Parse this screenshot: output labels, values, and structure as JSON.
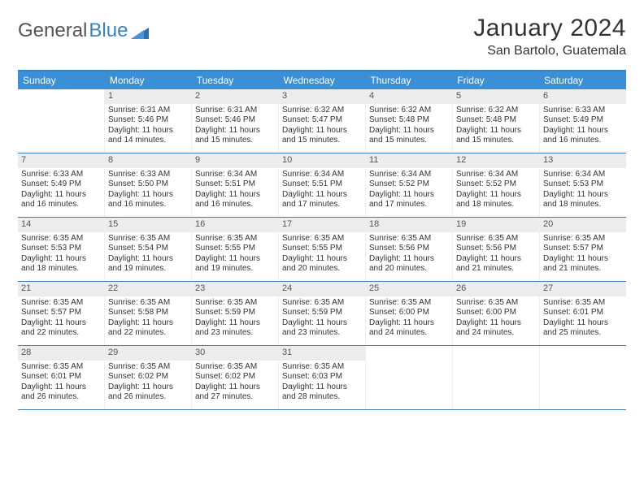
{
  "logo": {
    "part1": "General",
    "part2": "Blue"
  },
  "title": "January 2024",
  "location": "San Bartolo, Guatemala",
  "colors": {
    "header_bar": "#3b8fd4",
    "rule": "#3b7fb8",
    "daynum_bg": "#ececec",
    "text": "#333333",
    "logo_gray": "#555555",
    "logo_blue": "#3b82c4"
  },
  "typography": {
    "title_fontsize": 30,
    "location_fontsize": 16,
    "dow_fontsize": 12,
    "cell_fontsize": 10
  },
  "dow": [
    "Sunday",
    "Monday",
    "Tuesday",
    "Wednesday",
    "Thursday",
    "Friday",
    "Saturday"
  ],
  "weeks": [
    [
      {
        "n": "",
        "lines": [
          "",
          "",
          "",
          ""
        ]
      },
      {
        "n": "1",
        "lines": [
          "Sunrise: 6:31 AM",
          "Sunset: 5:46 PM",
          "Daylight: 11 hours",
          "and 14 minutes."
        ]
      },
      {
        "n": "2",
        "lines": [
          "Sunrise: 6:31 AM",
          "Sunset: 5:46 PM",
          "Daylight: 11 hours",
          "and 15 minutes."
        ]
      },
      {
        "n": "3",
        "lines": [
          "Sunrise: 6:32 AM",
          "Sunset: 5:47 PM",
          "Daylight: 11 hours",
          "and 15 minutes."
        ]
      },
      {
        "n": "4",
        "lines": [
          "Sunrise: 6:32 AM",
          "Sunset: 5:48 PM",
          "Daylight: 11 hours",
          "and 15 minutes."
        ]
      },
      {
        "n": "5",
        "lines": [
          "Sunrise: 6:32 AM",
          "Sunset: 5:48 PM",
          "Daylight: 11 hours",
          "and 15 minutes."
        ]
      },
      {
        "n": "6",
        "lines": [
          "Sunrise: 6:33 AM",
          "Sunset: 5:49 PM",
          "Daylight: 11 hours",
          "and 16 minutes."
        ]
      }
    ],
    [
      {
        "n": "7",
        "lines": [
          "Sunrise: 6:33 AM",
          "Sunset: 5:49 PM",
          "Daylight: 11 hours",
          "and 16 minutes."
        ]
      },
      {
        "n": "8",
        "lines": [
          "Sunrise: 6:33 AM",
          "Sunset: 5:50 PM",
          "Daylight: 11 hours",
          "and 16 minutes."
        ]
      },
      {
        "n": "9",
        "lines": [
          "Sunrise: 6:34 AM",
          "Sunset: 5:51 PM",
          "Daylight: 11 hours",
          "and 16 minutes."
        ]
      },
      {
        "n": "10",
        "lines": [
          "Sunrise: 6:34 AM",
          "Sunset: 5:51 PM",
          "Daylight: 11 hours",
          "and 17 minutes."
        ]
      },
      {
        "n": "11",
        "lines": [
          "Sunrise: 6:34 AM",
          "Sunset: 5:52 PM",
          "Daylight: 11 hours",
          "and 17 minutes."
        ]
      },
      {
        "n": "12",
        "lines": [
          "Sunrise: 6:34 AM",
          "Sunset: 5:52 PM",
          "Daylight: 11 hours",
          "and 18 minutes."
        ]
      },
      {
        "n": "13",
        "lines": [
          "Sunrise: 6:34 AM",
          "Sunset: 5:53 PM",
          "Daylight: 11 hours",
          "and 18 minutes."
        ]
      }
    ],
    [
      {
        "n": "14",
        "lines": [
          "Sunrise: 6:35 AM",
          "Sunset: 5:53 PM",
          "Daylight: 11 hours",
          "and 18 minutes."
        ]
      },
      {
        "n": "15",
        "lines": [
          "Sunrise: 6:35 AM",
          "Sunset: 5:54 PM",
          "Daylight: 11 hours",
          "and 19 minutes."
        ]
      },
      {
        "n": "16",
        "lines": [
          "Sunrise: 6:35 AM",
          "Sunset: 5:55 PM",
          "Daylight: 11 hours",
          "and 19 minutes."
        ]
      },
      {
        "n": "17",
        "lines": [
          "Sunrise: 6:35 AM",
          "Sunset: 5:55 PM",
          "Daylight: 11 hours",
          "and 20 minutes."
        ]
      },
      {
        "n": "18",
        "lines": [
          "Sunrise: 6:35 AM",
          "Sunset: 5:56 PM",
          "Daylight: 11 hours",
          "and 20 minutes."
        ]
      },
      {
        "n": "19",
        "lines": [
          "Sunrise: 6:35 AM",
          "Sunset: 5:56 PM",
          "Daylight: 11 hours",
          "and 21 minutes."
        ]
      },
      {
        "n": "20",
        "lines": [
          "Sunrise: 6:35 AM",
          "Sunset: 5:57 PM",
          "Daylight: 11 hours",
          "and 21 minutes."
        ]
      }
    ],
    [
      {
        "n": "21",
        "lines": [
          "Sunrise: 6:35 AM",
          "Sunset: 5:57 PM",
          "Daylight: 11 hours",
          "and 22 minutes."
        ]
      },
      {
        "n": "22",
        "lines": [
          "Sunrise: 6:35 AM",
          "Sunset: 5:58 PM",
          "Daylight: 11 hours",
          "and 22 minutes."
        ]
      },
      {
        "n": "23",
        "lines": [
          "Sunrise: 6:35 AM",
          "Sunset: 5:59 PM",
          "Daylight: 11 hours",
          "and 23 minutes."
        ]
      },
      {
        "n": "24",
        "lines": [
          "Sunrise: 6:35 AM",
          "Sunset: 5:59 PM",
          "Daylight: 11 hours",
          "and 23 minutes."
        ]
      },
      {
        "n": "25",
        "lines": [
          "Sunrise: 6:35 AM",
          "Sunset: 6:00 PM",
          "Daylight: 11 hours",
          "and 24 minutes."
        ]
      },
      {
        "n": "26",
        "lines": [
          "Sunrise: 6:35 AM",
          "Sunset: 6:00 PM",
          "Daylight: 11 hours",
          "and 24 minutes."
        ]
      },
      {
        "n": "27",
        "lines": [
          "Sunrise: 6:35 AM",
          "Sunset: 6:01 PM",
          "Daylight: 11 hours",
          "and 25 minutes."
        ]
      }
    ],
    [
      {
        "n": "28",
        "lines": [
          "Sunrise: 6:35 AM",
          "Sunset: 6:01 PM",
          "Daylight: 11 hours",
          "and 26 minutes."
        ]
      },
      {
        "n": "29",
        "lines": [
          "Sunrise: 6:35 AM",
          "Sunset: 6:02 PM",
          "Daylight: 11 hours",
          "and 26 minutes."
        ]
      },
      {
        "n": "30",
        "lines": [
          "Sunrise: 6:35 AM",
          "Sunset: 6:02 PM",
          "Daylight: 11 hours",
          "and 27 minutes."
        ]
      },
      {
        "n": "31",
        "lines": [
          "Sunrise: 6:35 AM",
          "Sunset: 6:03 PM",
          "Daylight: 11 hours",
          "and 28 minutes."
        ]
      },
      {
        "n": "",
        "lines": [
          "",
          "",
          "",
          ""
        ]
      },
      {
        "n": "",
        "lines": [
          "",
          "",
          "",
          ""
        ]
      },
      {
        "n": "",
        "lines": [
          "",
          "",
          "",
          ""
        ]
      }
    ]
  ]
}
